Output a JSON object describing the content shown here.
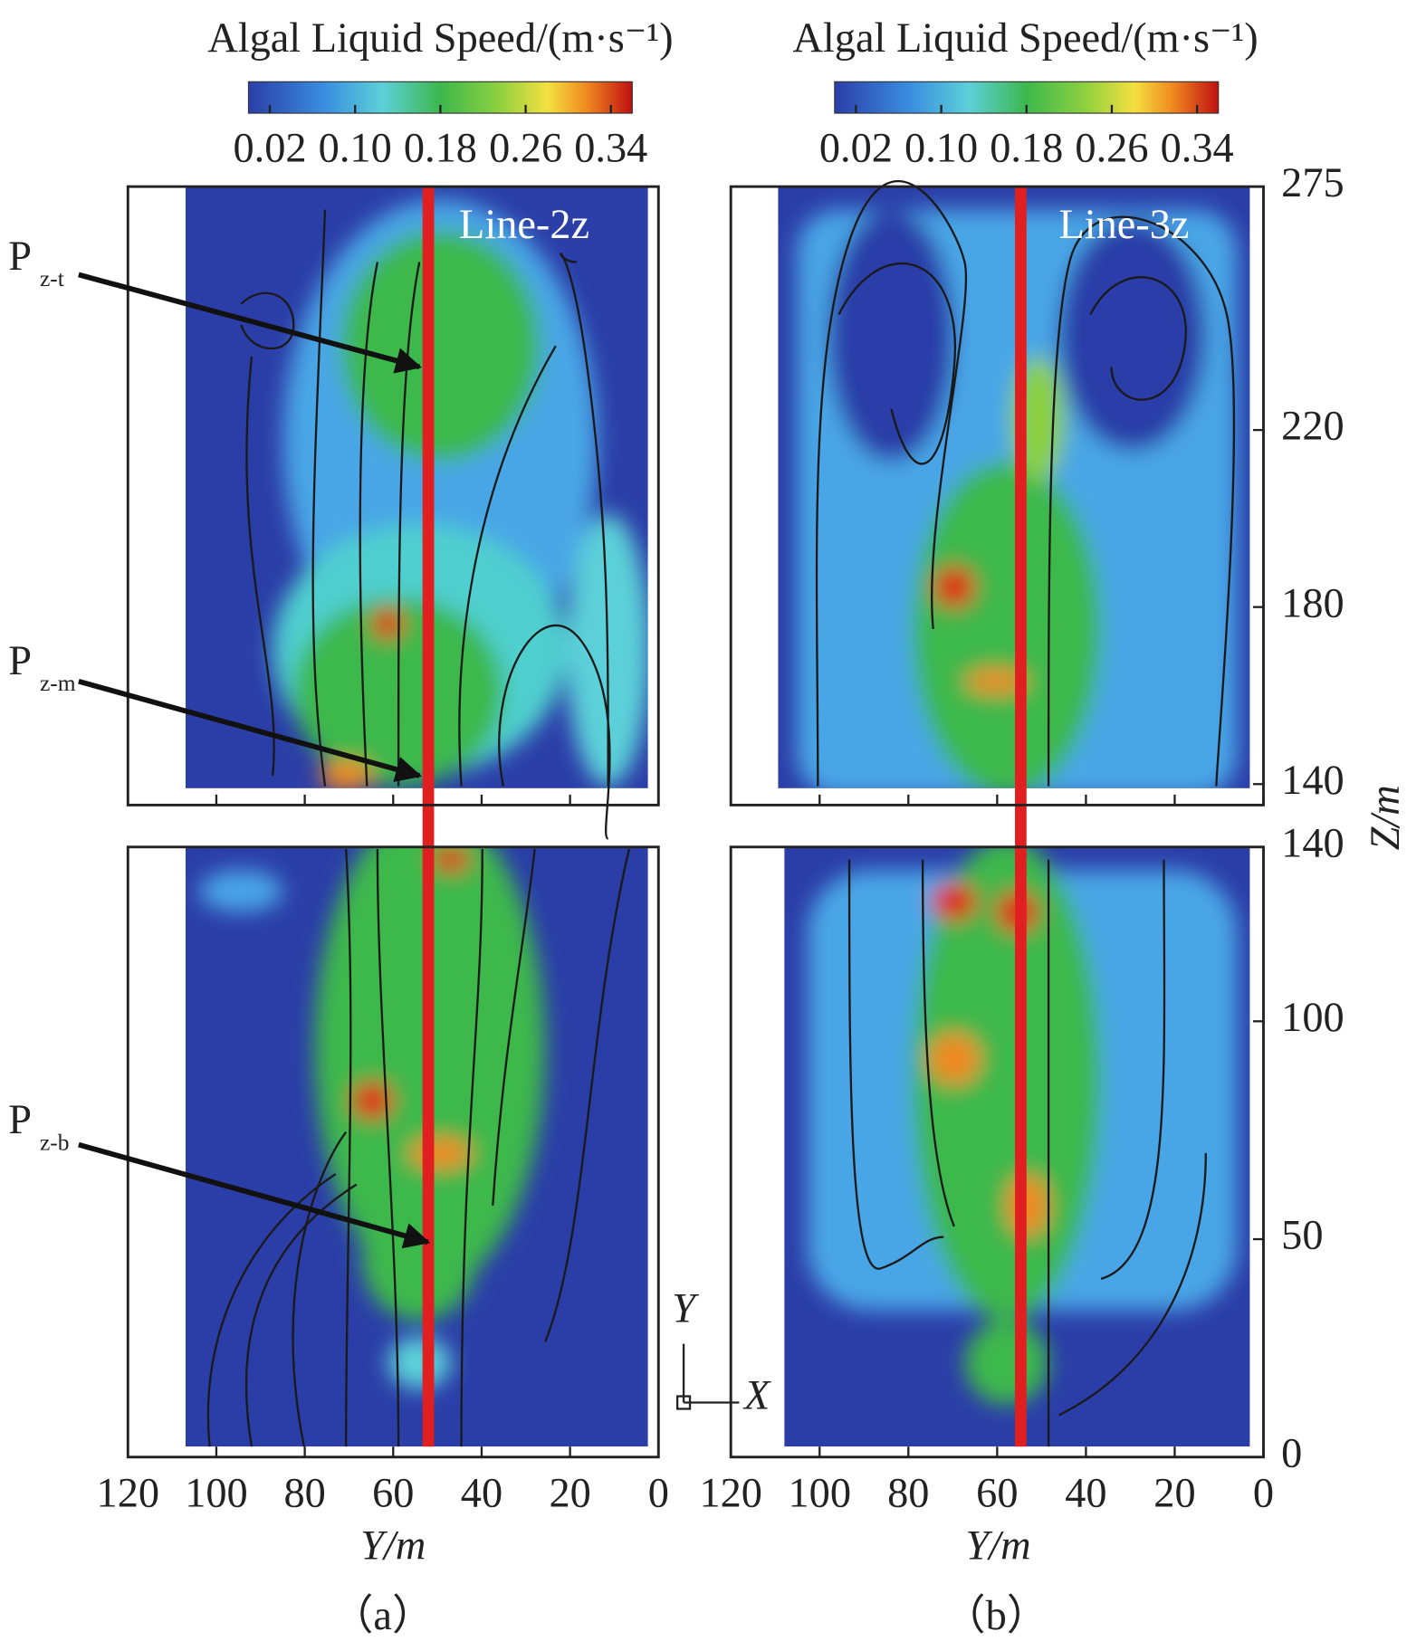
{
  "panels": [
    {
      "colorbar_title": "Algal Liquid Speed/(m·s⁻¹)",
      "colorbar_ticks": [
        {
          "value": 0.02,
          "label": "0.02"
        },
        {
          "value": 0.1,
          "label": "0.10"
        },
        {
          "value": 0.18,
          "label": "0.18"
        },
        {
          "value": 0.26,
          "label": "0.26"
        },
        {
          "value": 0.34,
          "label": "0.34"
        }
      ],
      "line_label": "Line-2z",
      "x_label": "Y/m",
      "caption": "（a）"
    },
    {
      "colorbar_title": "Algal Liquid Speed/(m·s⁻¹)",
      "colorbar_ticks": [
        {
          "value": 0.02,
          "label": "0.02"
        },
        {
          "value": 0.1,
          "label": "0.10"
        },
        {
          "value": 0.18,
          "label": "0.18"
        },
        {
          "value": 0.26,
          "label": "0.26"
        },
        {
          "value": 0.34,
          "label": "0.34"
        }
      ],
      "line_label": "Line-3z",
      "x_label": "Y/m",
      "caption": "（b）"
    }
  ],
  "clim": [
    0,
    0.36
  ],
  "xlim": [
    120,
    0
  ],
  "xticks": [
    120,
    100,
    80,
    60,
    40,
    20,
    0
  ],
  "z_top": {
    "lim": [
      140,
      275
    ],
    "ticks": [
      275,
      220,
      180,
      140
    ]
  },
  "z_bottom": {
    "lim": [
      0,
      140
    ],
    "ticks": [
      140,
      100,
      50,
      0
    ]
  },
  "z_label": "Z/m",
  "annotations": [
    {
      "main": "P",
      "sub": "z-t"
    },
    {
      "main": "P",
      "sub": "z-m"
    },
    {
      "main": "P",
      "sub": "z-b"
    }
  ],
  "axis_indicator": {
    "up": "Y",
    "right": "X"
  }
}
